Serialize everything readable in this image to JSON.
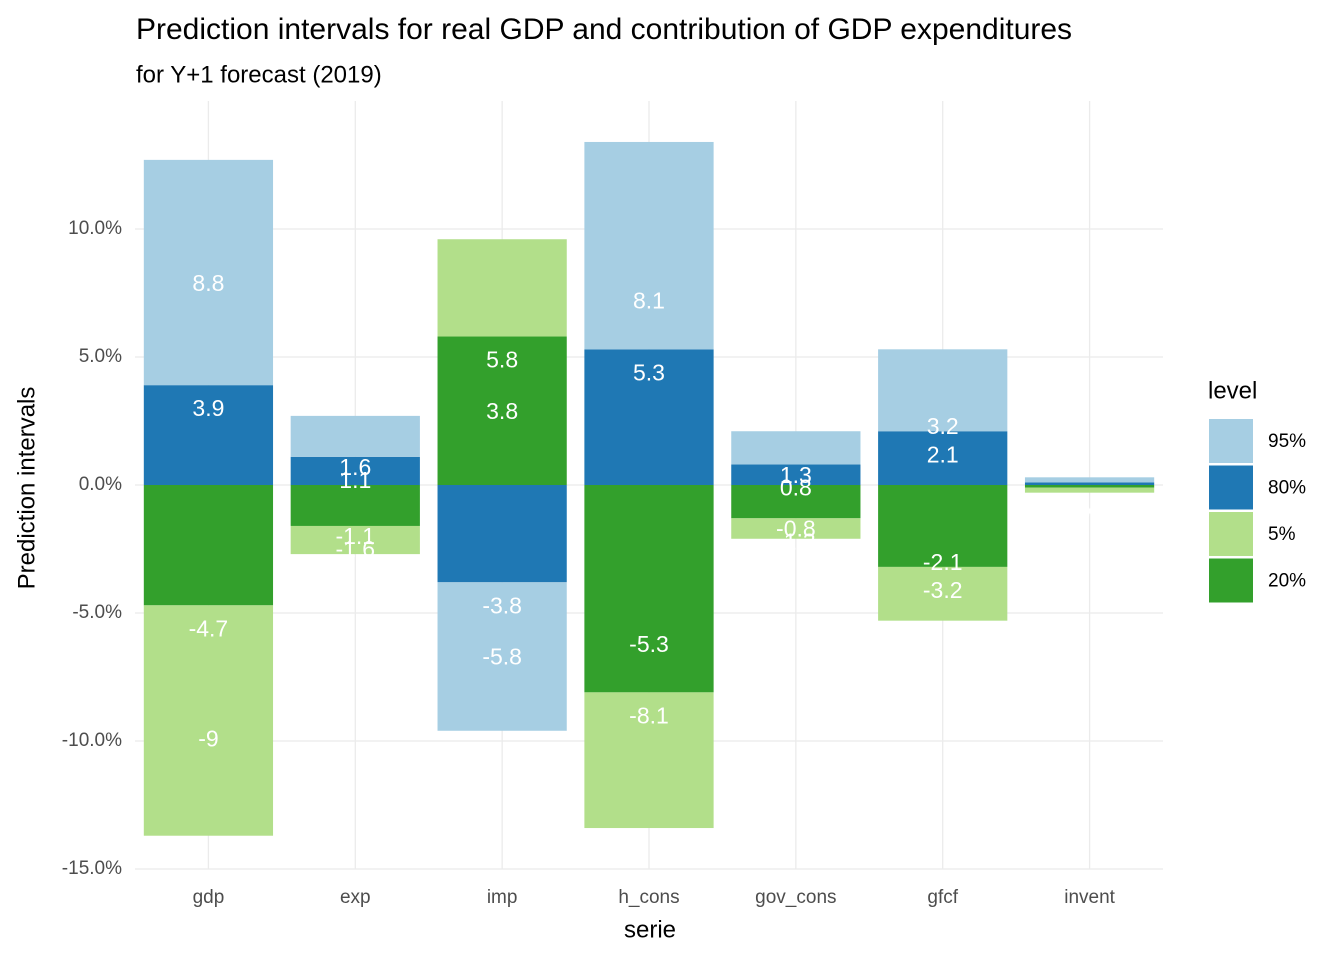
{
  "chart_data": {
    "type": "bar",
    "stacked": true,
    "title": "Prediction intervals for real GDP and contribution of GDP expenditures",
    "subtitle": "for Y+1 forecast (2019)",
    "x_label": "serie",
    "y_label": "Prediction intervals",
    "legend_title": "level",
    "legend_position": "right",
    "grid": true,
    "categories": [
      "gdp",
      "exp",
      "imp",
      "h_cons",
      "gov_cons",
      "gfcf",
      "invent"
    ],
    "series": [
      {
        "name": "95%",
        "color": "#a6cee3",
        "values": [
          8.8,
          1.6,
          -5.8,
          8.1,
          1.3,
          3.2,
          0.2
        ]
      },
      {
        "name": "80%",
        "color": "#1f78b4",
        "values": [
          3.9,
          1.1,
          -3.8,
          5.3,
          0.8,
          2.1,
          0.1
        ]
      },
      {
        "name": "5%",
        "color": "#b2df8a",
        "values": [
          -9,
          -1.1,
          3.8,
          -5.3,
          -0.8,
          -2.1,
          -0.2
        ]
      },
      {
        "name": "20%",
        "color": "#33a02c",
        "values": [
          -4.7,
          -1.6,
          5.8,
          -8.1,
          -1.3,
          -3.2,
          -0.1
        ]
      }
    ],
    "ylim": [
      -15,
      15
    ],
    "yticks": [
      {
        "value": -15,
        "label": "-15.0%"
      },
      {
        "value": -10,
        "label": "-10.0%"
      },
      {
        "value": -5,
        "label": "-5.0%"
      },
      {
        "value": 0,
        "label": "0.0%"
      },
      {
        "value": 5,
        "label": "5.0%"
      },
      {
        "value": 10,
        "label": "10.0%"
      }
    ]
  }
}
